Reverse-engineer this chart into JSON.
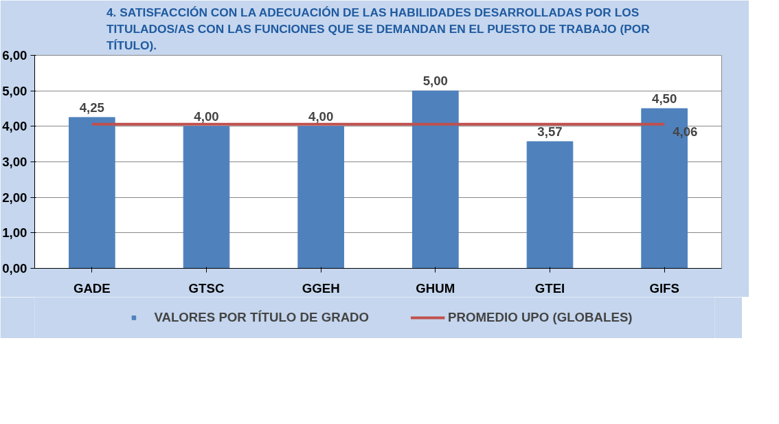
{
  "chart_data": {
    "type": "bar",
    "title": "4. SATISFACCIÓN CON LA ADECUACIÓN DE LAS HABILIDADES DESARROLLADAS POR LOS TITULADOS/AS CON LAS FUNCIONES QUE SE DEMANDAN EN EL PUESTO DE TRABAJO (POR TÍTULO).",
    "categories": [
      "GADE",
      "GTSC",
      "GGEH",
      "GHUM",
      "GTEI",
      "GIFS"
    ],
    "series": [
      {
        "name": "VALORES POR TÍTULO DE GRADO",
        "color": "#4f81bd",
        "values": [
          4.25,
          4.0,
          4.0,
          5.0,
          3.57,
          4.5
        ],
        "value_labels": [
          "4,25",
          "4,00",
          "4,00",
          "5,00",
          "3,57",
          "4,50"
        ]
      },
      {
        "name": "PROMEDIO UPO (GLOBALES)",
        "type": "line",
        "color": "#c0504d",
        "values": [
          4.06,
          4.06,
          4.06,
          4.06,
          4.06,
          4.06
        ],
        "value_labels": [
          null,
          null,
          null,
          null,
          null,
          "4,06"
        ]
      }
    ],
    "ylim": [
      0,
      6
    ],
    "yticks": [
      {
        "value": 0,
        "label": "0,00"
      },
      {
        "value": 1,
        "label": "1,00"
      },
      {
        "value": 2,
        "label": "2,00"
      },
      {
        "value": 3,
        "label": "3,00"
      },
      {
        "value": 4,
        "label": "4,00"
      },
      {
        "value": 5,
        "label": "5,00"
      },
      {
        "value": 6,
        "label": "6,00"
      }
    ],
    "grid": "y",
    "legend": "bottom",
    "line_style": "solid",
    "marker": "none"
  }
}
